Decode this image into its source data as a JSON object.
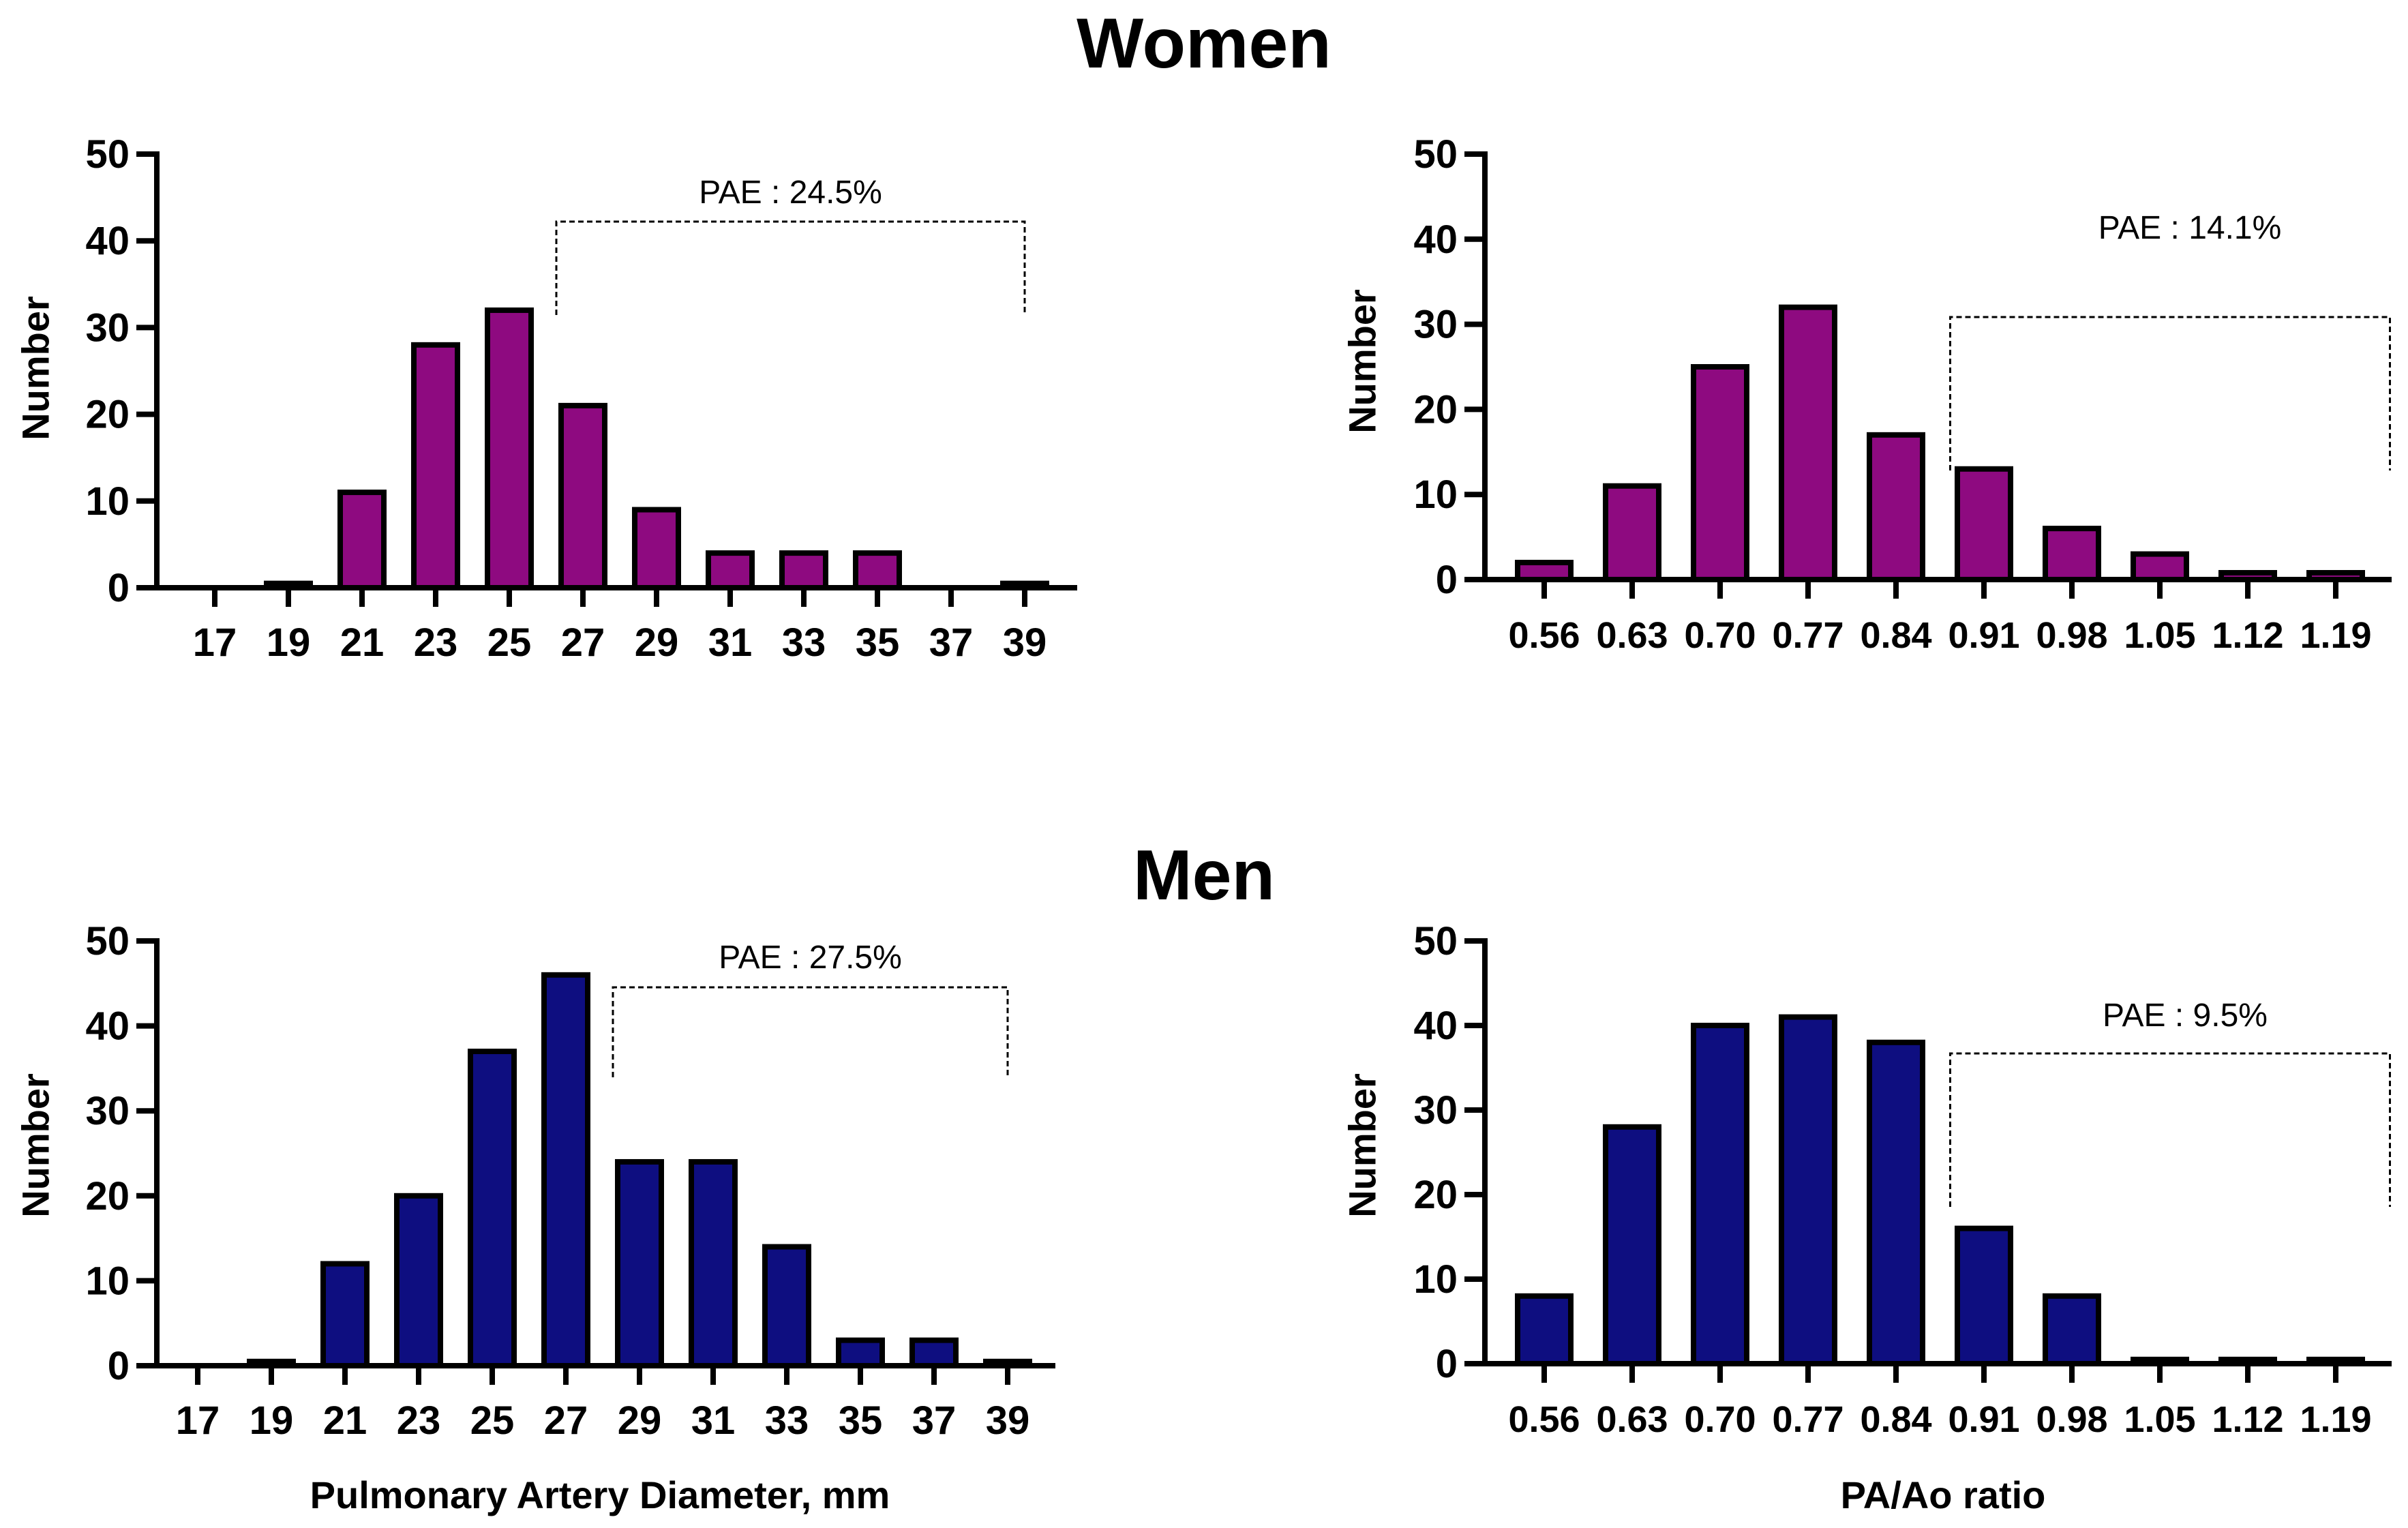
{
  "headings": {
    "women": "Women",
    "men": "Men"
  },
  "colors": {
    "women_bar": "#8E0A80",
    "men_bar": "#0E0E80",
    "outline": "#000000"
  },
  "x_titles": {
    "diameter": "Pulmonary Artery Diameter, mm",
    "ratio": "PA/Ao ratio"
  },
  "chart_data": [
    {
      "id": "women-diameter",
      "type": "bar",
      "group": "Women",
      "ylabel": "Number",
      "xlabel": "",
      "ylim": [
        0,
        50
      ],
      "yticks": [
        "0",
        "10",
        "20",
        "30",
        "40",
        "50"
      ],
      "categories": [
        "17",
        "19",
        "21",
        "23",
        "25",
        "27",
        "29",
        "31",
        "33",
        "35",
        "37",
        "39"
      ],
      "values": [
        0,
        0.5,
        11,
        28,
        32,
        21,
        9,
        4,
        4,
        4,
        0,
        0.5
      ],
      "annotation": {
        "text": "PAE : 24.5%",
        "from_index": 5,
        "to_index": 11
      }
    },
    {
      "id": "women-ratio",
      "type": "bar",
      "group": "Women",
      "ylabel": "Number",
      "xlabel": "",
      "ylim": [
        0,
        50
      ],
      "yticks": [
        "0",
        "10",
        "20",
        "30",
        "40",
        "50"
      ],
      "categories": [
        "0.56",
        "0.63",
        "0.70",
        "0.77",
        "0.84",
        "0.91",
        "0.98",
        "1.05",
        "1.12",
        "1.19"
      ],
      "values": [
        2,
        11,
        25,
        32,
        17,
        13,
        6,
        3,
        0.8,
        0.8
      ],
      "annotation": {
        "text": "PAE : 14.1%",
        "from_index": 5,
        "to_index": 9
      }
    },
    {
      "id": "men-diameter",
      "type": "bar",
      "group": "Men",
      "ylabel": "Number",
      "xlabel": "Pulmonary Artery Diameter, mm",
      "ylim": [
        0,
        50
      ],
      "yticks": [
        "0",
        "10",
        "20",
        "30",
        "40",
        "50"
      ],
      "categories": [
        "17",
        "19",
        "21",
        "23",
        "25",
        "27",
        "29",
        "31",
        "33",
        "35",
        "37",
        "39"
      ],
      "values": [
        0,
        0.5,
        12,
        20,
        37,
        46,
        24,
        24,
        14,
        3,
        3,
        0.5
      ],
      "annotation": {
        "text": "PAE : 27.5%",
        "from_index": 6,
        "to_index": 11
      }
    },
    {
      "id": "men-ratio",
      "type": "bar",
      "group": "Men",
      "ylabel": "Number",
      "xlabel": "PA/Ao ratio",
      "ylim": [
        0,
        50
      ],
      "yticks": [
        "0",
        "10",
        "20",
        "30",
        "40",
        "50"
      ],
      "categories": [
        "0.56",
        "0.63",
        "0.70",
        "0.77",
        "0.84",
        "0.91",
        "0.98",
        "1.05",
        "1.12",
        "1.19"
      ],
      "values": [
        8,
        28,
        40,
        41,
        38,
        16,
        8,
        0.5,
        0.5,
        0.5
      ],
      "annotation": {
        "text": "PAE : 9.5%",
        "from_index": 5,
        "to_index": 9
      }
    }
  ]
}
